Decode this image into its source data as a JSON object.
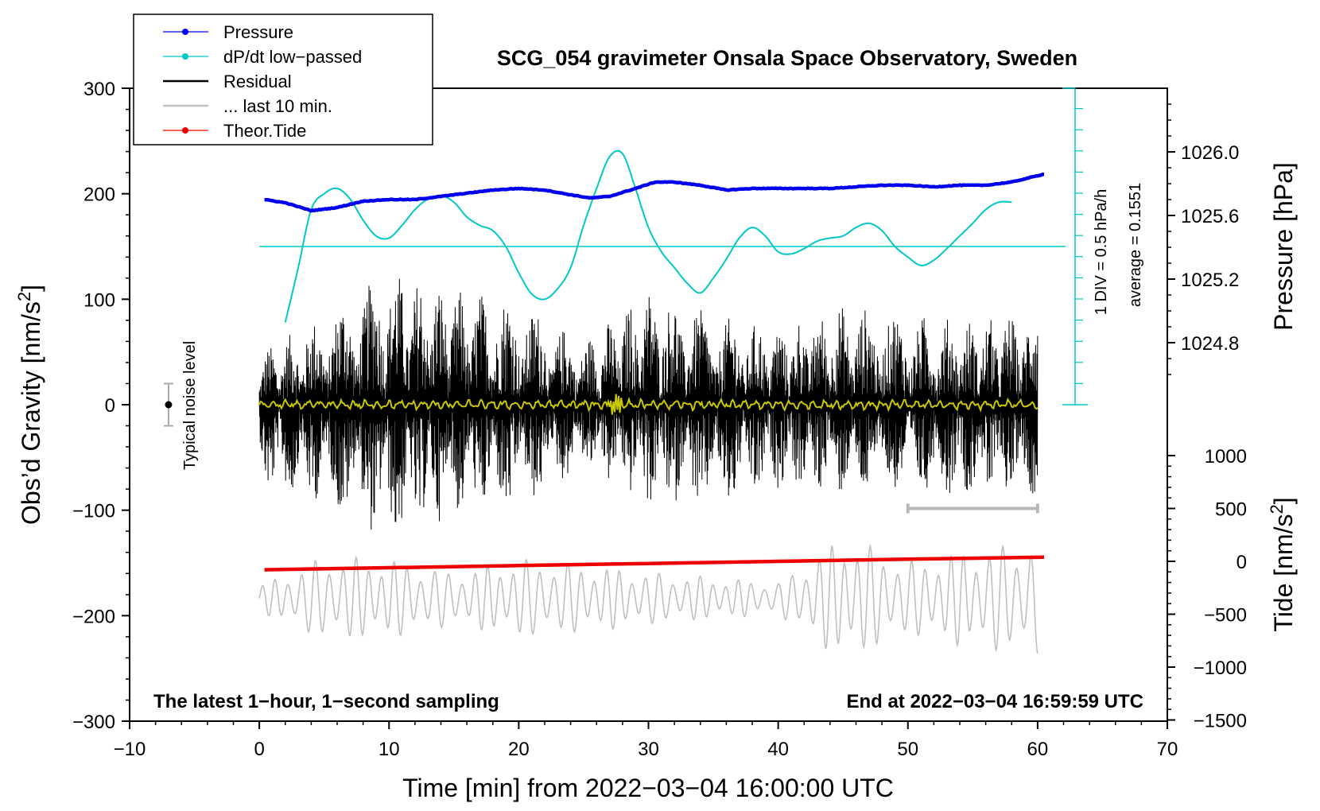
{
  "chart_data": {
    "type": "line",
    "title": "SCG_054 gravimeter Onsala Space Observatory, Sweden",
    "xlabel": "Time [min] from 2022−03−04 16:00:00 UTC",
    "ylabel_left": "Obs’d Gravity [nm/s",
    "ylabel_left_sup": "2",
    "ylabel_left_end": "]",
    "ylabel_right_pressure": "Pressure [hPa]",
    "ylabel_right_tide": "Tide [nm/s",
    "ylabel_right_tide_sup": "2",
    "ylabel_right_tide_end": "]",
    "xlim": [
      -10,
      70
    ],
    "ylim": [
      -300,
      300
    ],
    "x_ticks": [
      "−10",
      "0",
      "10",
      "20",
      "30",
      "40",
      "50",
      "60",
      "70"
    ],
    "y_ticks": [
      "−300",
      "−200",
      "−100",
      "0",
      "100",
      "200",
      "300"
    ],
    "pressure_ticks": [
      "1026.0",
      "1025.6",
      "1025.2",
      "1024.8"
    ],
    "tide_ticks": [
      "−1500",
      "−1000",
      "−500",
      "0",
      "500",
      "1000"
    ],
    "dpdt_scale_label": "1 DIV = 0.5 hPa/h",
    "dpdt_average_label": "average = 0.1551",
    "noise_label": "Typical noise level",
    "note_left": "The latest 1−hour, 1−second sampling",
    "note_right": "End at 2022−03−04 16:59:59 UTC",
    "legend": [
      {
        "label": "Pressure",
        "color": "#0000ee",
        "marker": true
      },
      {
        "label": "dP/dt low−passed",
        "color": "#00c8c8",
        "marker": true
      },
      {
        "label": "Residual",
        "color": "#000000",
        "marker": false
      },
      {
        "label": "... last 10 min.",
        "color": "#c0c0c0",
        "marker": false
      },
      {
        "label": "Theor.Tide",
        "color": "#ee0000",
        "marker": true
      }
    ],
    "series": [
      {
        "name": "Pressure",
        "axis": "pressure_hPa",
        "color": "#0000ee",
        "x": [
          0.4,
          2,
          4,
          6,
          8,
          10,
          12,
          14,
          16,
          18,
          20,
          22,
          24,
          25.5,
          27,
          29,
          30.5,
          32,
          34,
          36,
          38,
          40,
          42,
          44,
          46,
          48,
          50,
          52,
          54,
          56,
          58,
          60.5
        ],
        "values": [
          1025.7,
          1025.68,
          1025.63,
          1025.65,
          1025.69,
          1025.7,
          1025.7,
          1025.72,
          1025.74,
          1025.76,
          1025.77,
          1025.76,
          1025.73,
          1025.71,
          1025.72,
          1025.77,
          1025.81,
          1025.81,
          1025.79,
          1025.76,
          1025.77,
          1025.77,
          1025.77,
          1025.77,
          1025.78,
          1025.79,
          1025.79,
          1025.78,
          1025.79,
          1025.79,
          1025.81,
          1025.86
        ]
      },
      {
        "name": "dP/dt low−passed",
        "axis": "gravity_nm_s2",
        "color": "#00c8c8",
        "x": [
          2,
          3,
          4,
          5,
          6,
          7,
          8,
          9,
          10,
          11,
          12,
          13,
          14,
          15,
          16,
          17,
          18,
          19,
          20,
          21,
          22,
          23,
          24,
          25,
          26,
          27,
          28,
          29,
          30,
          31,
          32,
          33,
          34,
          35,
          36,
          37,
          38,
          39,
          40,
          41,
          42,
          43,
          44,
          45,
          46,
          47,
          48,
          49,
          50,
          51,
          52,
          53,
          54,
          55,
          56,
          57,
          58
        ],
        "values": [
          78,
          130,
          185,
          200,
          205,
          195,
          175,
          160,
          158,
          170,
          185,
          195,
          198,
          192,
          178,
          170,
          165,
          150,
          125,
          105,
          100,
          110,
          130,
          170,
          205,
          235,
          238,
          205,
          168,
          145,
          130,
          115,
          106,
          120,
          138,
          158,
          168,
          160,
          145,
          143,
          148,
          155,
          158,
          160,
          168,
          172,
          165,
          150,
          140,
          132,
          137,
          148,
          160,
          172,
          185,
          192,
          192
        ]
      },
      {
        "name": "Residual",
        "axis": "gravity_nm_s2",
        "color": "#000000",
        "x_range": [
          0,
          60
        ],
        "envelope_x": [
          0,
          5,
          10,
          15,
          20,
          25,
          30,
          35,
          40,
          45,
          50,
          55,
          60
        ],
        "envelope_max": [
          50,
          85,
          130,
          110,
          100,
          60,
          110,
          85,
          75,
          95,
          85,
          80,
          90
        ],
        "envelope_min": [
          -80,
          -95,
          -130,
          -105,
          -100,
          -60,
          -95,
          -100,
          -80,
          -85,
          -80,
          -90,
          -85
        ]
      },
      {
        "name": "Low−passed residual",
        "axis": "gravity_nm_s2",
        "color": "#c8c800",
        "x_range": [
          0,
          60
        ],
        "level": 0
      },
      {
        "name": "... last 10 min.",
        "axis": "tide_nm_s2",
        "color": "#c0c0c0",
        "x_range": [
          0,
          60
        ],
        "envelope_x": [
          0,
          5,
          10,
          15,
          20,
          25,
          30,
          35,
          40,
          45,
          50,
          55,
          60
        ],
        "envelope_amp": [
          250,
          800,
          750,
          500,
          750,
          650,
          500,
          400,
          300,
          1200,
          700,
          950,
          1100
        ]
      },
      {
        "name": "Theor.Tide",
        "axis": "tide_nm_s2",
        "color": "#ee0000",
        "x": [
          0.4,
          10,
          20,
          30,
          40,
          50,
          60.5
        ],
        "values": [
          -80,
          -60,
          -40,
          -20,
          0,
          20,
          40
        ]
      }
    ],
    "dpdt_average_line": 150,
    "noise_bar": {
      "x": -7,
      "center": 0,
      "half_range": 20
    },
    "last_10_min_bar": [
      50,
      60
    ]
  }
}
